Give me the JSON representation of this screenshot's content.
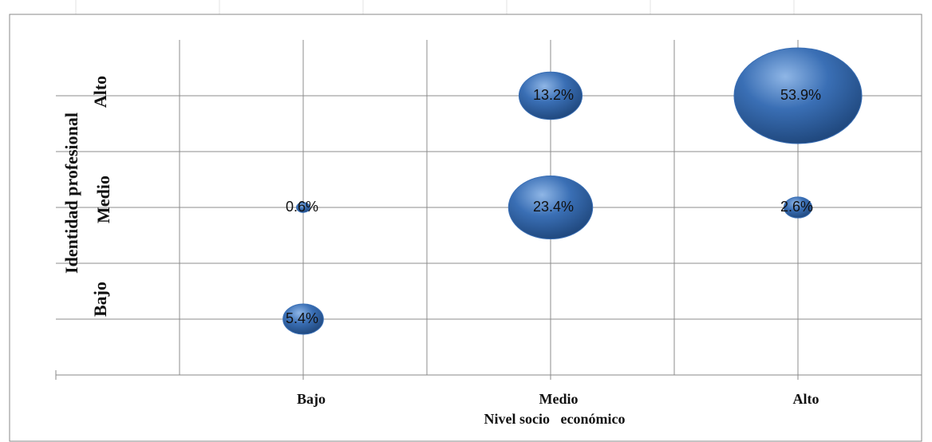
{
  "chart_data": {
    "type": "bubble",
    "x_label": "Nivel socio   económico",
    "y_label": "Identidad profesional",
    "xlim": [
      0,
      3.5
    ],
    "ylim": [
      0.5,
      3.5
    ],
    "xticks": [
      {
        "value": 1,
        "label": "Bajo"
      },
      {
        "value": 2,
        "label": "Medio"
      },
      {
        "value": 3,
        "label": "Alto"
      }
    ],
    "yticks": [
      {
        "value": 1,
        "label": "Bajo"
      },
      {
        "value": 2,
        "label": "Medio"
      },
      {
        "value": 3,
        "label": "Alto"
      }
    ],
    "xgrid": [
      0.5,
      1,
      1.5,
      2,
      2.5,
      3
    ],
    "ygrid": [
      1,
      1.5,
      2,
      2.5,
      3
    ],
    "grid": true,
    "color": "#3a6fb5",
    "series": [
      {
        "x": [
          1,
          1,
          2,
          2,
          3,
          3
        ],
        "y": [
          2,
          1,
          3,
          2,
          3,
          2
        ],
        "sizes": [
          0.6,
          5.4,
          13.2,
          23.4,
          53.9,
          2.6
        ],
        "value_labels": [
          "0.6%",
          "5.4%",
          "13.2%",
          "23.4%",
          "53.9%",
          "2.6%"
        ]
      }
    ]
  }
}
